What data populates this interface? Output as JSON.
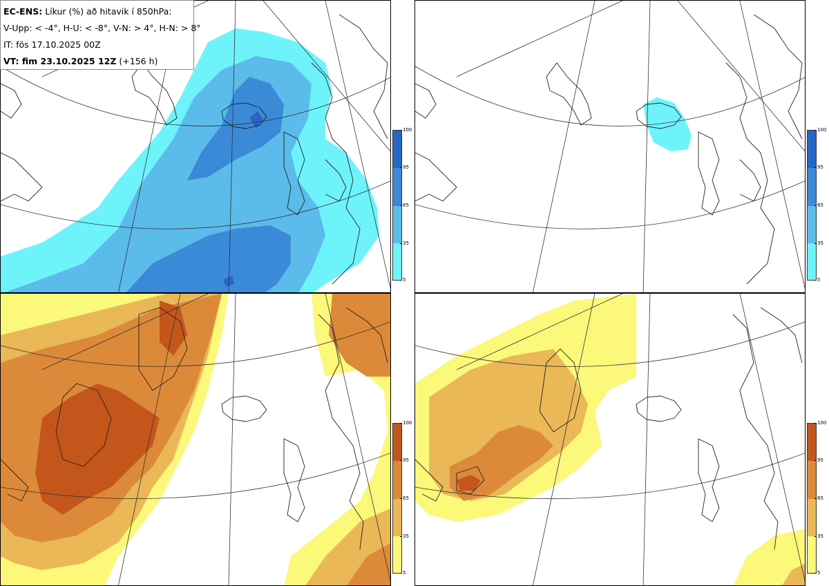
{
  "header": {
    "model": "EC-ENS:",
    "title": "Líkur (%) að hitavik í 850hPa:",
    "thresholds": "V-Upp: < -4°, H-U: < -8°, V-N: > 4°, H-N: > 8°",
    "init_time": "IT: fös 17.10.2025 00Z",
    "valid_label": "VT: fim 23.10.2025 12Z",
    "lead": "(+156 h)"
  },
  "colorbar": {
    "ticks": [
      "100",
      "95",
      "65",
      "35",
      "5"
    ],
    "cold_colors": [
      "#2566c8",
      "#3a8ad8",
      "#5bbbea",
      "#6ef3fb"
    ],
    "warm_colors": [
      "#c4561c",
      "#dc8a3a",
      "#eab857",
      "#fbf87a"
    ]
  },
  "panels": [
    {
      "id": "top-left",
      "field": "cold < -4°"
    },
    {
      "id": "top-right",
      "field": "cold < -8°"
    },
    {
      "id": "bottom-left",
      "field": "warm > 4°"
    },
    {
      "id": "bottom-right",
      "field": "warm > 8°"
    }
  ]
}
